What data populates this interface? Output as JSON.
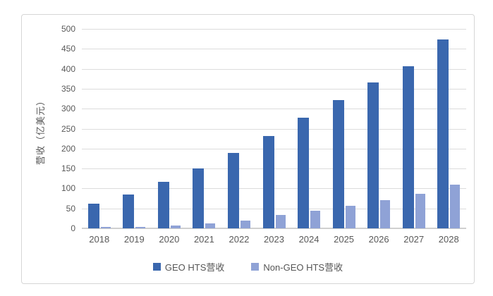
{
  "chart_data": {
    "type": "bar",
    "title": "",
    "xlabel": "",
    "ylabel": "营收（亿美元）",
    "categories": [
      "2018",
      "2019",
      "2020",
      "2021",
      "2022",
      "2023",
      "2024",
      "2025",
      "2026",
      "2027",
      "2028"
    ],
    "series": [
      {
        "name": "GEO HTS营收",
        "color": "#3a67ae",
        "values": [
          62,
          85,
          116,
          151,
          189,
          232,
          278,
          322,
          366,
          406,
          474
        ]
      },
      {
        "name": "Non-GEO HTS营收",
        "color": "#8fa2d6",
        "values": [
          3,
          4,
          7,
          12,
          19,
          33,
          44,
          57,
          70,
          86,
          109
        ]
      }
    ],
    "ylim": [
      0,
      500
    ],
    "ytick_step": 50,
    "grid": "horizontal",
    "legend_position": "bottom"
  },
  "colors": {
    "background": "#ffffff",
    "card_border": "#d6d6d6",
    "gridline": "#dcdcdc",
    "axis_line": "#d0d0d0",
    "tick_text": "#595959"
  }
}
